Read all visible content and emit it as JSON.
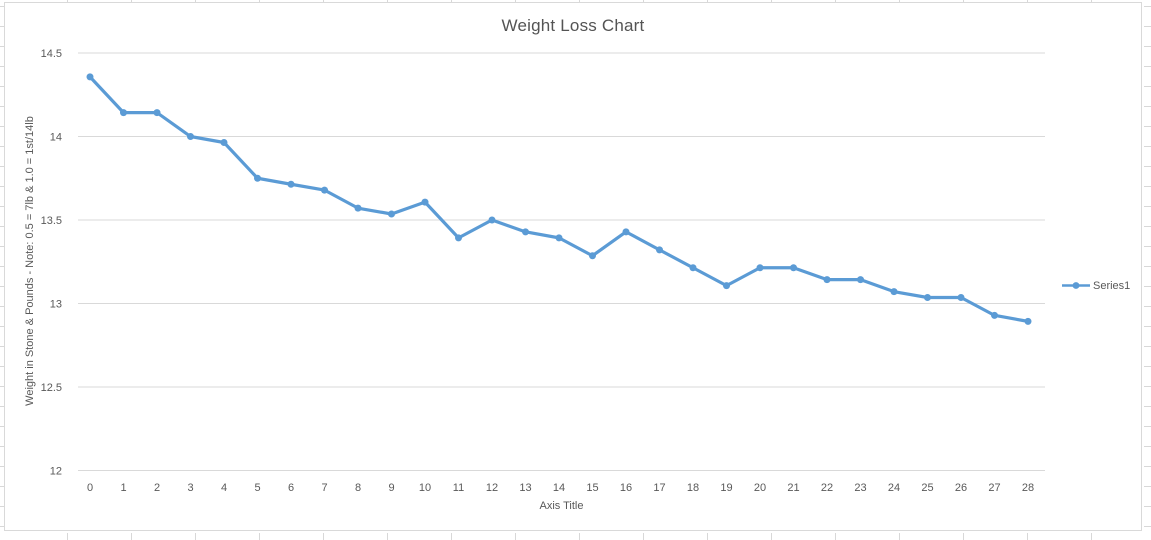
{
  "colors": {
    "accent": "#5B9BD5",
    "gridline": "#D9D9D9",
    "axis_text": "#595959",
    "chart_border": "#D9D9D9",
    "sheet_gridline": "#D8D8D8"
  },
  "chart_data": {
    "type": "line",
    "title": "Weight Loss Chart",
    "xlabel": "Axis Title",
    "ylabel": "Weight in Stone & Pounds - Note: 0.5 = 7lb & 1.0 = 1st/14lb",
    "categories": [
      "0",
      "1",
      "2",
      "3",
      "4",
      "5",
      "6",
      "7",
      "8",
      "9",
      "10",
      "11",
      "12",
      "13",
      "14",
      "15",
      "16",
      "17",
      "18",
      "19",
      "20",
      "21",
      "22",
      "23",
      "24",
      "25",
      "26",
      "27",
      "28"
    ],
    "series": [
      {
        "name": "Series1",
        "color": "#5B9BD5",
        "marker": "circle",
        "values": [
          14.357,
          14.143,
          14.143,
          14.0,
          13.964,
          13.75,
          13.714,
          13.679,
          13.571,
          13.536,
          13.607,
          13.393,
          13.5,
          13.429,
          13.393,
          13.286,
          13.429,
          13.321,
          13.214,
          13.107,
          13.214,
          13.214,
          13.143,
          13.143,
          13.071,
          13.036,
          13.036,
          12.929,
          12.893
        ]
      }
    ],
    "ylim": [
      12,
      14.5
    ],
    "yticks": [
      12,
      12.5,
      13,
      13.5,
      14,
      14.5
    ],
    "grid": true,
    "legend_position": "right"
  }
}
